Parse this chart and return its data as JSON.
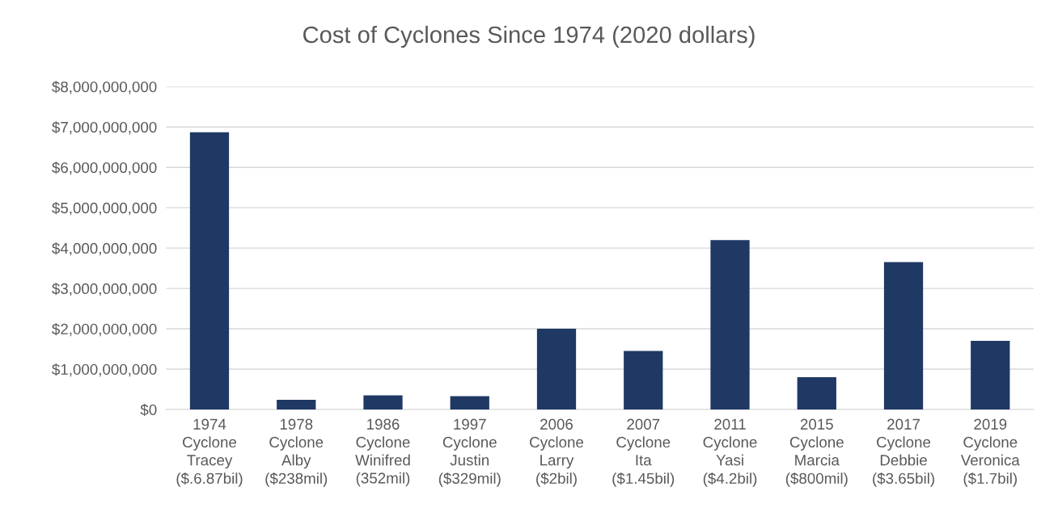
{
  "chart_data": {
    "type": "bar",
    "title": "Cost of Cyclones Since 1974 (2020 dollars)",
    "categories": [
      "1974\nCyclone\nTracey\n($.6.87bil)",
      "1978\nCyclone\nAlby\n($238mil)",
      "1986\nCyclone\nWinifred\n(352mil)",
      "1997\nCyclone\nJustin\n($329mil)",
      "2006\nCyclone\nLarry\n($2bil)",
      "2007\nCyclone\nIta\n($1.45bil)",
      "2011\nCyclone\nYasi\n($4.2bil)",
      "2015\nCyclone\nMarcia\n($800mil)",
      "2017\nCyclone\nDebbie\n($3.65bil)",
      "2019\nCyclone\nVeronica\n($1.7bil)"
    ],
    "values": [
      6870000000,
      238000000,
      352000000,
      329000000,
      2000000000,
      1450000000,
      4200000000,
      800000000,
      3650000000,
      1700000000
    ],
    "color": "#1f3864",
    "ylim": [
      0,
      8000000000
    ],
    "yticks": [
      {
        "value": 0,
        "label": "$0"
      },
      {
        "value": 1000000000,
        "label": "$1,000,000,000"
      },
      {
        "value": 2000000000,
        "label": "$2,000,000,000"
      },
      {
        "value": 3000000000,
        "label": "$3,000,000,000"
      },
      {
        "value": 4000000000,
        "label": "$4,000,000,000"
      },
      {
        "value": 5000000000,
        "label": "$5,000,000,000"
      },
      {
        "value": 6000000000,
        "label": "$6,000,000,000"
      },
      {
        "value": 7000000000,
        "label": "$7,000,000,000"
      },
      {
        "value": 8000000000,
        "label": "$8,000,000,000"
      }
    ],
    "grid": "y"
  }
}
